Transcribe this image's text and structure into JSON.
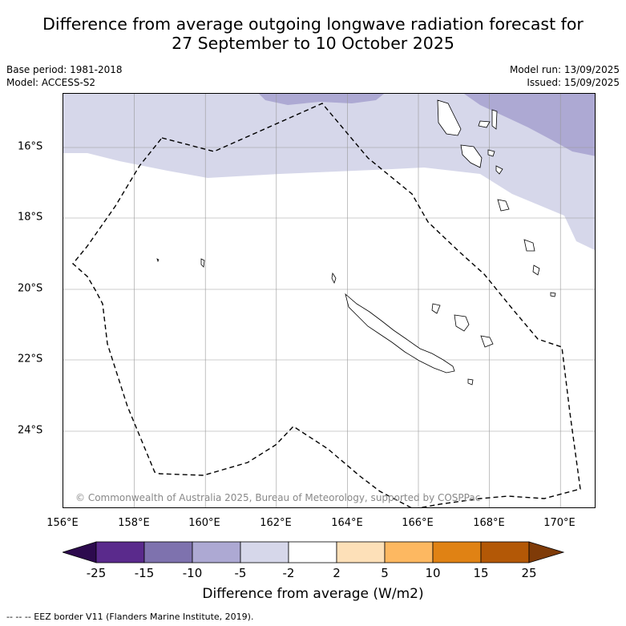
{
  "title_line1": "Difference from average outgoing longwave radiation forecast for",
  "title_line2": "27 September to 10 October 2025",
  "base_period": "Base period: 1981-2018",
  "model": "Model: ACCESS-S2",
  "model_run": "Model run: 13/09/2025",
  "issued": "Issued: 15/09/2025",
  "copyright": "© Commonwealth of Australia 2025, Bureau of Meteorology, supported by COSPPac",
  "map": {
    "lon_range": [
      156,
      171
    ],
    "lat_range": [
      -14.8,
      -26.5
    ],
    "lon_ticks": [
      "156°E",
      "158°E",
      "160°E",
      "162°E",
      "164°E",
      "166°E",
      "168°E",
      "170°E"
    ],
    "lat_ticks": [
      "16°S",
      "18°S",
      "20°S",
      "22°S",
      "24°S"
    ],
    "gridlines": true,
    "land_color": "#ffffff",
    "coastline_color": "#000000",
    "eez_style": "dashed"
  },
  "colorbar": {
    "label": "Difference from average (W/m2)",
    "ticks": [
      "-25",
      "-15",
      "-10",
      "-5",
      "-2",
      "2",
      "5",
      "10",
      "15",
      "25"
    ],
    "colors": [
      "#2d0a4e",
      "#5a2a8c",
      "#7e72ae",
      "#ada9d3",
      "#d6d7ea",
      "#ffffff",
      "#fde0b8",
      "#fdb861",
      "#e08214",
      "#b35806",
      "#7f3b08"
    ]
  },
  "footer": "--  --  -- EEZ border V11 (Flanders Marine Institute, 2019)."
}
